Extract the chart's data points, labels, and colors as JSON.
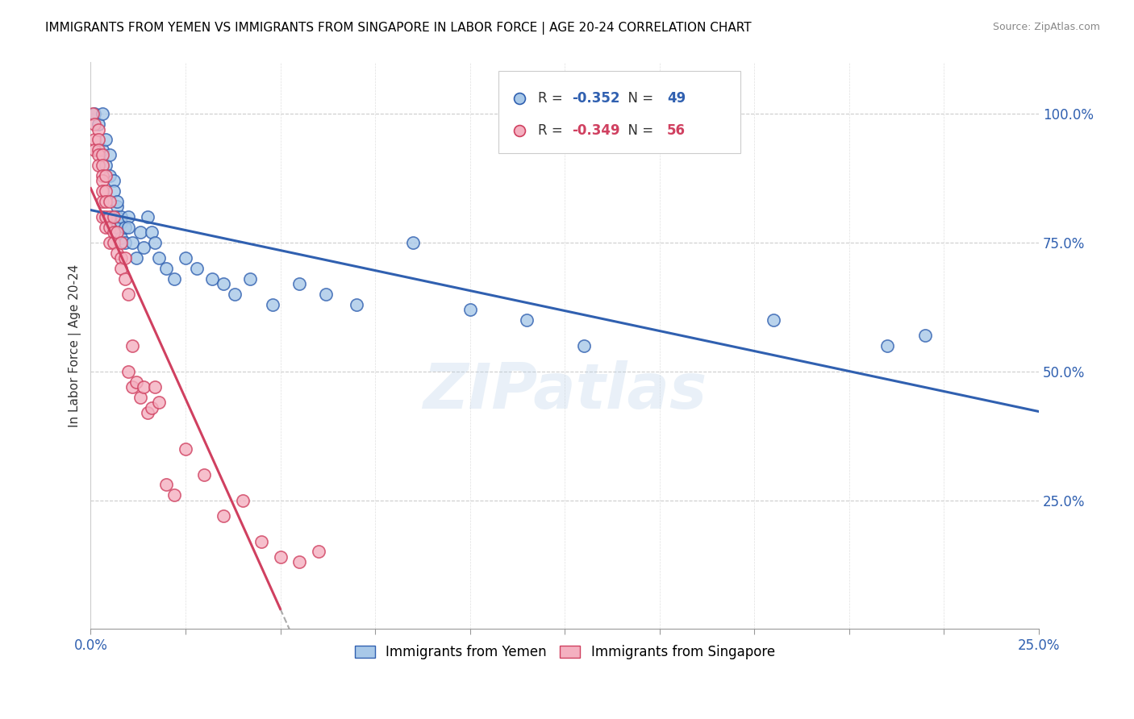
{
  "title": "IMMIGRANTS FROM YEMEN VS IMMIGRANTS FROM SINGAPORE IN LABOR FORCE | AGE 20-24 CORRELATION CHART",
  "source": "Source: ZipAtlas.com",
  "ylabel_label": "In Labor Force | Age 20-24",
  "ytick_labels": [
    "100.0%",
    "75.0%",
    "50.0%",
    "25.0%"
  ],
  "ytick_values": [
    1.0,
    0.75,
    0.5,
    0.25
  ],
  "xlim": [
    0.0,
    0.25
  ],
  "ylim": [
    0.0,
    1.1
  ],
  "color_yemen": "#a8c8e8",
  "color_singapore": "#f4b0c0",
  "line_color_yemen": "#3060b0",
  "line_color_singapore": "#d04060",
  "watermark": "ZIPatlas",
  "yemen_r": "-0.352",
  "yemen_n": "49",
  "singapore_r": "-0.349",
  "singapore_n": "56",
  "yemen_scatter_x": [
    0.001,
    0.002,
    0.003,
    0.003,
    0.004,
    0.004,
    0.005,
    0.005,
    0.006,
    0.006,
    0.006,
    0.007,
    0.007,
    0.007,
    0.007,
    0.008,
    0.008,
    0.008,
    0.009,
    0.009,
    0.01,
    0.01,
    0.011,
    0.012,
    0.013,
    0.014,
    0.015,
    0.016,
    0.017,
    0.018,
    0.02,
    0.022,
    0.025,
    0.028,
    0.032,
    0.035,
    0.038,
    0.042,
    0.048,
    0.055,
    0.062,
    0.07,
    0.085,
    0.1,
    0.115,
    0.13,
    0.18,
    0.21,
    0.22
  ],
  "yemen_scatter_y": [
    1.0,
    0.98,
    0.93,
    1.0,
    0.9,
    0.95,
    0.88,
    0.92,
    0.87,
    0.85,
    0.8,
    0.82,
    0.78,
    0.8,
    0.83,
    0.79,
    0.76,
    0.8,
    0.78,
    0.75,
    0.8,
    0.78,
    0.75,
    0.72,
    0.77,
    0.74,
    0.8,
    0.77,
    0.75,
    0.72,
    0.7,
    0.68,
    0.72,
    0.7,
    0.68,
    0.67,
    0.65,
    0.68,
    0.63,
    0.67,
    0.65,
    0.63,
    0.75,
    0.62,
    0.6,
    0.55,
    0.6,
    0.55,
    0.57
  ],
  "singapore_scatter_x": [
    0.0005,
    0.001,
    0.001,
    0.001,
    0.002,
    0.002,
    0.002,
    0.002,
    0.002,
    0.003,
    0.003,
    0.003,
    0.003,
    0.003,
    0.003,
    0.003,
    0.004,
    0.004,
    0.004,
    0.004,
    0.004,
    0.005,
    0.005,
    0.005,
    0.005,
    0.006,
    0.006,
    0.006,
    0.007,
    0.007,
    0.008,
    0.008,
    0.008,
    0.009,
    0.009,
    0.01,
    0.01,
    0.011,
    0.011,
    0.012,
    0.013,
    0.014,
    0.015,
    0.016,
    0.017,
    0.018,
    0.02,
    0.022,
    0.025,
    0.03,
    0.035,
    0.04,
    0.045,
    0.05,
    0.055,
    0.06
  ],
  "singapore_scatter_y": [
    1.0,
    0.98,
    0.95,
    0.93,
    0.97,
    0.95,
    0.93,
    0.92,
    0.9,
    0.92,
    0.9,
    0.88,
    0.87,
    0.85,
    0.83,
    0.8,
    0.88,
    0.85,
    0.83,
    0.8,
    0.78,
    0.83,
    0.8,
    0.78,
    0.75,
    0.8,
    0.77,
    0.75,
    0.77,
    0.73,
    0.75,
    0.72,
    0.7,
    0.72,
    0.68,
    0.65,
    0.5,
    0.55,
    0.47,
    0.48,
    0.45,
    0.47,
    0.42,
    0.43,
    0.47,
    0.44,
    0.28,
    0.26,
    0.35,
    0.3,
    0.22,
    0.25,
    0.17,
    0.14,
    0.13,
    0.15
  ]
}
